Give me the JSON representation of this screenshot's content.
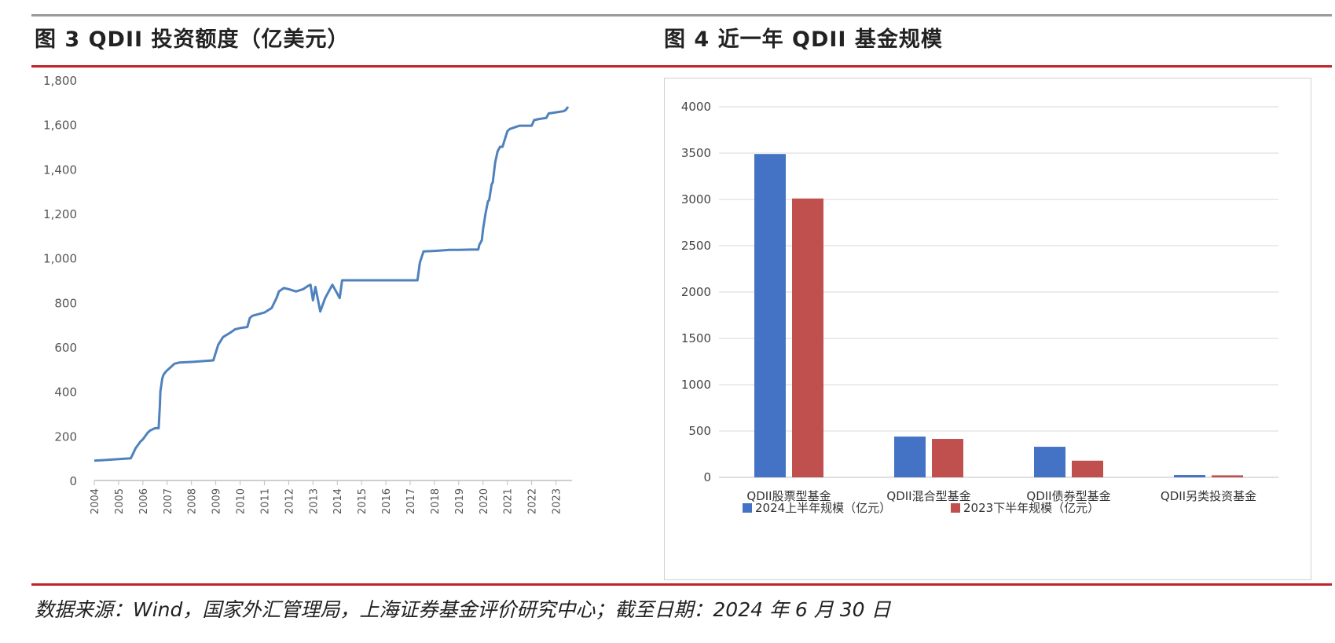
{
  "figure3": {
    "title": "图 3 QDII 投资额度（亿美元）"
  },
  "figure4": {
    "title": "图 4 近一年 QDII 基金规模"
  },
  "source": "数据来源：Wind，国家外汇管理局，上海证券基金评价研究中心；截至日期：2024 年 6 月 30 日",
  "colors": {
    "line": "#4f81bd",
    "series1": "#4472c4",
    "series2": "#c0504d",
    "rule": "#c0232a"
  },
  "chart_data": [
    {
      "type": "line",
      "title": "QDII 投资额度（亿美元）",
      "xlabel": "",
      "ylabel": "",
      "xlim": [
        2004,
        2023.5
      ],
      "ylim": [
        0,
        1800
      ],
      "x_ticks": [
        "2004",
        "2005",
        "2006",
        "2007",
        "2008",
        "2009",
        "2010",
        "2011",
        "2012",
        "2013",
        "2014",
        "2015",
        "2016",
        "2017",
        "2018",
        "2019",
        "2020",
        "2021",
        "2022",
        "2023"
      ],
      "y_ticks": [
        "0",
        "200",
        "400",
        "600",
        "800",
        "1,000",
        "1,200",
        "1,400",
        "1,600",
        "1,800"
      ],
      "grid": false,
      "series": [
        {
          "x": [
            2004.0,
            2005.5,
            2005.55,
            2005.7,
            2005.9,
            2006.0,
            2006.2,
            2006.3,
            2006.5,
            2006.65,
            2006.7,
            2006.72,
            2006.8,
            2006.85,
            2006.95,
            2007.1,
            2007.3,
            2007.5,
            2008.0,
            2008.5,
            2008.9,
            2009.0,
            2009.1,
            2009.3,
            2009.6,
            2009.8,
            2010.0,
            2010.3,
            2010.4,
            2010.5,
            2011.0,
            2011.3,
            2011.5,
            2011.6,
            2011.8,
            2012.0,
            2012.3,
            2012.6,
            2012.8,
            2012.9,
            2013.0,
            2013.1,
            2013.3,
            2013.4,
            2013.5,
            2013.8,
            2013.95,
            2014.1,
            2014.2,
            2014.3,
            2014.4,
            2015.0,
            2016.0,
            2017.0,
            2017.3,
            2017.4,
            2017.55,
            2018.0,
            2018.3,
            2018.6,
            2019.0,
            2019.5,
            2019.8,
            2019.85,
            2019.95,
            2020.0,
            2020.1,
            2020.2,
            2020.25,
            2020.35,
            2020.4,
            2020.5,
            2020.6,
            2020.7,
            2020.8,
            2021.0,
            2021.1,
            2021.5,
            2022.0,
            2022.1,
            2022.3,
            2022.6,
            2022.7,
            2023.0,
            2023.3,
            2023.4,
            2023.5
          ],
          "y": [
            89,
            100,
            110,
            145,
            175,
            185,
            215,
            225,
            235,
            235,
            340,
            400,
            460,
            475,
            490,
            505,
            525,
            530,
            533,
            537,
            540,
            575,
            610,
            645,
            665,
            680,
            685,
            690,
            730,
            740,
            755,
            775,
            820,
            850,
            865,
            860,
            850,
            860,
            875,
            880,
            810,
            870,
            760,
            790,
            820,
            880,
            850,
            820,
            900,
            900,
            900,
            900,
            900,
            900,
            900,
            980,
            1030,
            1032,
            1034,
            1037,
            1037,
            1038,
            1038,
            1060,
            1080,
            1130,
            1200,
            1255,
            1260,
            1330,
            1340,
            1430,
            1480,
            1500,
            1500,
            1570,
            1580,
            1595,
            1595,
            1620,
            1625,
            1630,
            1650,
            1655,
            1660,
            1665,
            1680
          ]
        }
      ]
    },
    {
      "type": "bar",
      "title": "近一年 QDII 基金规模",
      "categories": [
        "QDII股票型基金",
        "QDII混合型基金",
        "QDII债券型基金",
        "QDII另类投资基金"
      ],
      "ylim": [
        0,
        4000
      ],
      "y_ticks": [
        "0",
        "500",
        "1000",
        "1500",
        "2000",
        "2500",
        "3000",
        "3500",
        "4000"
      ],
      "grid": true,
      "legend": "bottom",
      "series": [
        {
          "name": "2024上半年规模（亿元）",
          "values": [
            3490,
            440,
            330,
            25
          ]
        },
        {
          "name": "2023下半年规模（亿元）",
          "values": [
            3010,
            415,
            180,
            22
          ]
        }
      ]
    }
  ]
}
